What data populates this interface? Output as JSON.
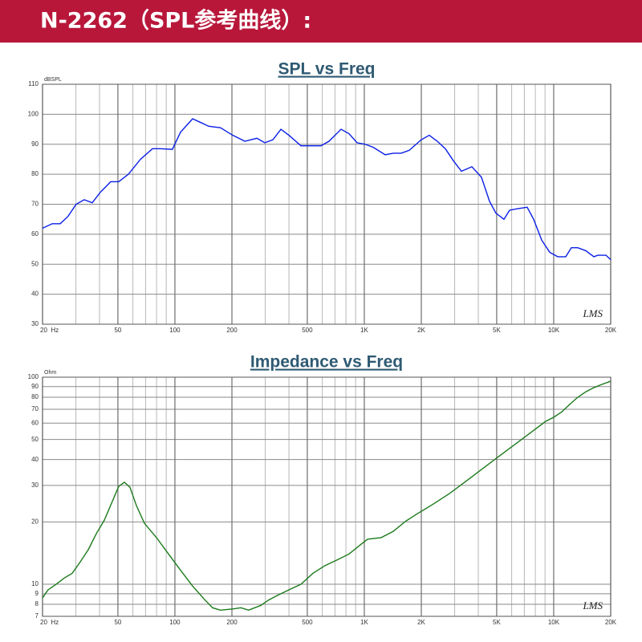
{
  "header": {
    "title": "N-2262（SPL参考曲线）:"
  },
  "chart_data": [
    {
      "type": "line",
      "title": "SPL vs Freq",
      "y_label": "dBSPL",
      "annotation": "LMS",
      "x_scale": "log",
      "y_scale": "linear",
      "grid": true,
      "color": "#0a1ee6",
      "xlim": [
        20,
        20000
      ],
      "ylim": [
        30,
        110
      ],
      "xticks": [
        {
          "value": 20,
          "label": "20  Hz"
        },
        50,
        100,
        200,
        500,
        {
          "value": 1000,
          "label": "1K"
        },
        {
          "value": 2000,
          "label": "2K"
        },
        {
          "value": 5000,
          "label": "5K"
        },
        {
          "value": 10000,
          "label": "10K"
        },
        {
          "value": 20000,
          "label": "20K"
        }
      ],
      "xminorticks": [
        30,
        40,
        60,
        70,
        80,
        90,
        300,
        400,
        600,
        700,
        800,
        900,
        3000,
        4000,
        6000,
        7000,
        8000,
        9000
      ],
      "yticks": [
        30,
        40,
        50,
        60,
        70,
        80,
        90,
        100,
        110
      ],
      "x": [
        20,
        22.5,
        24.8,
        27.3,
        30.1,
        33.2,
        36.6,
        40.4,
        45.8,
        50.5,
        56.8,
        65.8,
        76.1,
        83.9,
        97,
        107,
        124,
        151,
        174,
        202,
        234,
        271,
        298,
        329,
        363,
        400,
        463,
        536,
        591,
        651,
        754,
        831,
        916,
        1010,
        1114,
        1289,
        1422,
        1567,
        1727,
        1998,
        2203,
        2429,
        2679,
        2954,
        3257,
        3698,
        4156,
        4582,
        4954,
        5462,
        5848,
        6448,
        7246,
        7834,
        8649,
        9528,
        10500,
        11580,
        12400,
        13400,
        14780,
        16300,
        17100,
        18880,
        20000
      ],
      "values": [
        62,
        63.5,
        63.5,
        66,
        70,
        71.5,
        70.5,
        74,
        77.5,
        77.5,
        80,
        85,
        88.5,
        88.5,
        88.3,
        94,
        98.5,
        96,
        95.5,
        93,
        91,
        92,
        90.5,
        91.5,
        95,
        93,
        89.5,
        89.5,
        89.5,
        91,
        95,
        93.5,
        90.5,
        90,
        89,
        86.5,
        87,
        87,
        88,
        91.5,
        93,
        91,
        88.5,
        84.5,
        81,
        82.5,
        79,
        71,
        67,
        65,
        68,
        68.5,
        69,
        65,
        58,
        54,
        52.5,
        52.5,
        55.5,
        55.5,
        54.5,
        52.5,
        53,
        53,
        51.5
      ]
    },
    {
      "type": "line",
      "title": "Impedance vs Freq",
      "y_label": "Ohm",
      "annotation": "LMS",
      "x_scale": "log",
      "y_scale": "log",
      "grid": true,
      "color": "#1b7a1b",
      "xlim": [
        20,
        20000
      ],
      "ylim": [
        7,
        100
      ],
      "xticks": [
        {
          "value": 20,
          "label": "20  Hz"
        },
        50,
        100,
        200,
        500,
        {
          "value": 1000,
          "label": "1K"
        },
        {
          "value": 2000,
          "label": "2K"
        },
        {
          "value": 5000,
          "label": "5K"
        },
        {
          "value": 10000,
          "label": "10K"
        },
        {
          "value": 20000,
          "label": "20K"
        }
      ],
      "xminorticks": [
        30,
        40,
        60,
        70,
        80,
        90,
        300,
        400,
        600,
        700,
        800,
        900,
        3000,
        4000,
        6000,
        7000,
        8000,
        9000
      ],
      "yticks": [
        7,
        8,
        9,
        10,
        20,
        30,
        40,
        50,
        60,
        70,
        80,
        90,
        100
      ],
      "x": [
        20,
        21.4,
        23.6,
        26,
        28.7,
        31.6,
        34.9,
        38.4,
        42.4,
        46.7,
        50.5,
        54.1,
        57.9,
        62.6,
        69,
        79.9,
        92.5,
        107,
        124,
        144,
        158,
        174,
        202,
        223,
        245,
        284,
        313,
        345,
        400,
        463,
        536,
        620,
        718,
        831,
        962,
        1040,
        1228,
        1422,
        1646,
        1905,
        2315,
        2814,
        3420,
        4156,
        5054,
        6140,
        7466,
        9074,
        10000,
        11040,
        12170,
        13400,
        14780,
        16300,
        17960,
        20000
      ],
      "values": [
        8.6,
        9.4,
        10,
        10.7,
        11.3,
        12.8,
        14.7,
        17.5,
        20.4,
        25.1,
        29.7,
        31.1,
        29.4,
        24,
        19.7,
        16.8,
        14,
        11.7,
        9.8,
        8.4,
        7.7,
        7.5,
        7.6,
        7.7,
        7.5,
        7.9,
        8.4,
        8.8,
        9.4,
        10,
        11.3,
        12.3,
        13.1,
        14,
        15.6,
        16.5,
        16.8,
        18,
        20.1,
        21.9,
        24.4,
        27.4,
        31.3,
        35.8,
        41,
        46.8,
        53.5,
        61.2,
        64,
        68,
        74,
        80,
        85,
        89,
        92.3,
        95.6
      ]
    }
  ]
}
